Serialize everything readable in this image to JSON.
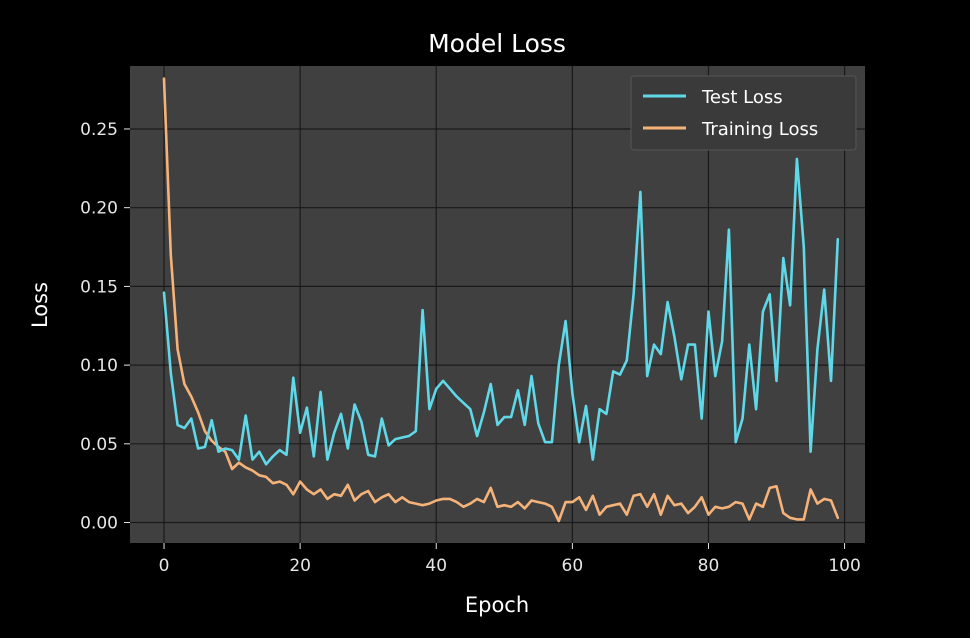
{
  "chart_data": {
    "type": "line",
    "title": "Model Loss",
    "xlabel": "Epoch",
    "ylabel": "Loss",
    "xlim": [
      -5,
      103
    ],
    "ylim": [
      -0.013,
      0.29
    ],
    "xticks": [
      0,
      20,
      40,
      60,
      80,
      100
    ],
    "xtick_labels": [
      "0",
      "20",
      "40",
      "60",
      "80",
      "100"
    ],
    "yticks": [
      0.0,
      0.05,
      0.1,
      0.15,
      0.2,
      0.25
    ],
    "ytick_labels": [
      "0.00",
      "0.05",
      "0.10",
      "0.15",
      "0.20",
      "0.25"
    ],
    "grid": true,
    "legend_position": "upper right",
    "colors": {
      "background": "#000000",
      "plot_area": "#404040",
      "grid": "#1a1a1a",
      "text": "#ffffff"
    },
    "series": [
      {
        "name": "Test Loss",
        "color": "#5fd8e8",
        "values": [
          0.146,
          0.095,
          0.062,
          0.06,
          0.066,
          0.047,
          0.048,
          0.065,
          0.045,
          0.047,
          0.046,
          0.04,
          0.068,
          0.04,
          0.045,
          0.037,
          0.042,
          0.046,
          0.043,
          0.092,
          0.057,
          0.073,
          0.042,
          0.083,
          0.04,
          0.057,
          0.069,
          0.047,
          0.075,
          0.064,
          0.043,
          0.042,
          0.066,
          0.049,
          0.053,
          0.054,
          0.055,
          0.058,
          0.135,
          0.072,
          0.085,
          0.09,
          0.085,
          0.08,
          0.076,
          0.072,
          0.055,
          0.07,
          0.088,
          0.062,
          0.067,
          0.067,
          0.084,
          0.062,
          0.093,
          0.063,
          0.051,
          0.051,
          0.1,
          0.128,
          0.082,
          0.051,
          0.074,
          0.04,
          0.072,
          0.069,
          0.096,
          0.094,
          0.103,
          0.145,
          0.21,
          0.093,
          0.113,
          0.107,
          0.14,
          0.118,
          0.091,
          0.113,
          0.113,
          0.066,
          0.134,
          0.093,
          0.115,
          0.186,
          0.051,
          0.066,
          0.113,
          0.072,
          0.134,
          0.145,
          0.09,
          0.168,
          0.138,
          0.231,
          0.175,
          0.045,
          0.11,
          0.148,
          0.09,
          0.18
        ]
      },
      {
        "name": "Training Loss",
        "color": "#f5b37a",
        "values": [
          0.282,
          0.17,
          0.11,
          0.088,
          0.08,
          0.07,
          0.058,
          0.052,
          0.048,
          0.045,
          0.034,
          0.038,
          0.035,
          0.033,
          0.03,
          0.029,
          0.025,
          0.026,
          0.024,
          0.018,
          0.026,
          0.021,
          0.018,
          0.021,
          0.015,
          0.018,
          0.017,
          0.024,
          0.014,
          0.018,
          0.02,
          0.013,
          0.016,
          0.018,
          0.013,
          0.016,
          0.013,
          0.012,
          0.011,
          0.012,
          0.014,
          0.015,
          0.015,
          0.013,
          0.01,
          0.012,
          0.015,
          0.013,
          0.022,
          0.01,
          0.011,
          0.01,
          0.013,
          0.009,
          0.014,
          0.013,
          0.012,
          0.01,
          0.001,
          0.013,
          0.013,
          0.016,
          0.008,
          0.017,
          0.005,
          0.01,
          0.011,
          0.012,
          0.005,
          0.017,
          0.018,
          0.01,
          0.018,
          0.005,
          0.017,
          0.011,
          0.012,
          0.006,
          0.01,
          0.016,
          0.005,
          0.01,
          0.009,
          0.01,
          0.013,
          0.012,
          0.002,
          0.012,
          0.01,
          0.022,
          0.023,
          0.006,
          0.003,
          0.002,
          0.002,
          0.021,
          0.012,
          0.015,
          0.014,
          0.003
        ]
      }
    ]
  }
}
